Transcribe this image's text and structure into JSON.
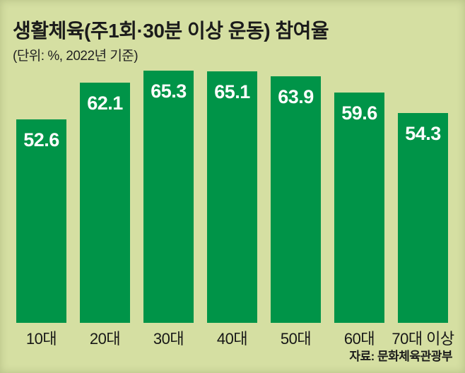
{
  "header": {
    "title": "생활체육(주1회·30분 이상 운동) 참여율",
    "subtitle": "(단위: %, 2022년 기준)"
  },
  "footer": {
    "source": "자료: 문화체육관광부"
  },
  "colors": {
    "background": "#d5dfa2",
    "bar": "#009448",
    "value_label": "#ffffff",
    "text": "#1b1b1b"
  },
  "chart_data": {
    "type": "bar",
    "title": "생활체육(주1회·30분 이상 운동) 참여율",
    "subtitle": "(단위: %, 2022년 기준)",
    "unit": "%",
    "year": "2022",
    "categories": [
      "10대",
      "20대",
      "30대",
      "40대",
      "50대",
      "60대",
      "70대 이상"
    ],
    "values": [
      52.6,
      62.1,
      65.3,
      65.1,
      63.9,
      59.6,
      54.3
    ],
    "xlabel": "",
    "ylabel": "",
    "ylim": [
      0,
      65.3
    ],
    "grid": false,
    "legend": false,
    "value_label_position": "inside-top",
    "source": "자료: 문화체육관광부"
  }
}
